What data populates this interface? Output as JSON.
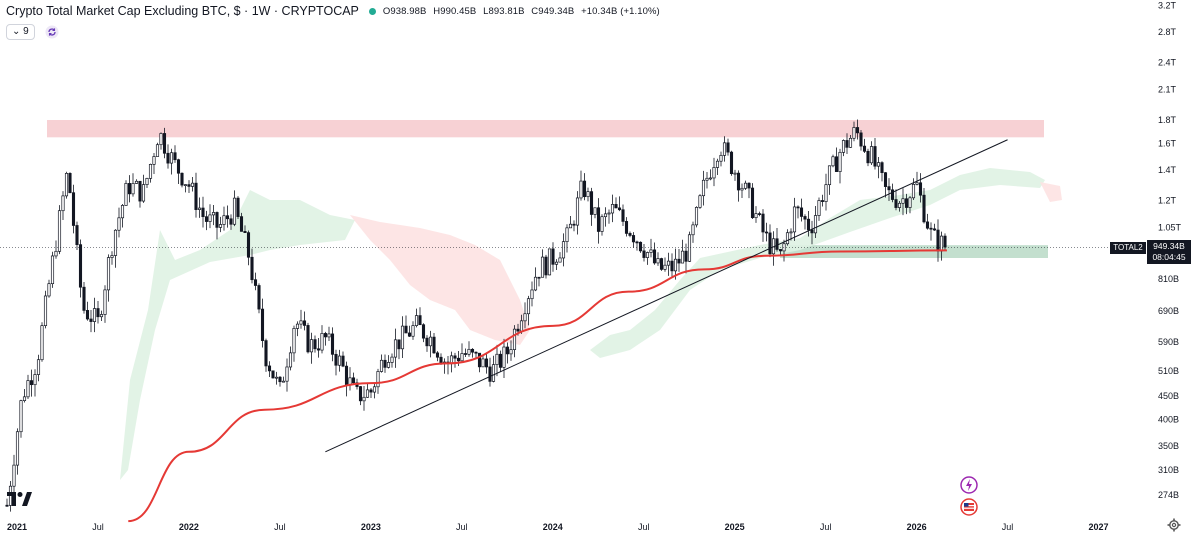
{
  "header": {
    "title": "Crypto Total Market Cap Excluding BTC, $ · 1W · CRYPTOCAP",
    "open": "O938.98B",
    "high": "H990.45B",
    "low": "L893.81B",
    "close": "C949.34B",
    "change": "+10.34B (+1.10%)",
    "indicator_count": "9"
  },
  "badges": {
    "symbol": "TOTAL2",
    "price": "949.34B",
    "countdown": "08:04:45"
  },
  "colors": {
    "up": "#131722",
    "down": "#131722",
    "ma": "#e53935",
    "resistance": "#f6c9cc",
    "support": "#b9d9c5",
    "cloud_bull": "#dff2e3",
    "cloud_bear": "#fde2e2",
    "trend": "#131722",
    "accent": "#22ab94"
  },
  "chart_data": {
    "type": "candlestick",
    "title": "Crypto Total Market Cap Excluding BTC, $ · 1W · CRYPTOCAP",
    "scale": "log",
    "ylim": [
      "240B",
      "3.2T"
    ],
    "xlim": [
      "2021-01",
      "2027-02"
    ],
    "y_ticks": [
      "3.2T",
      "2.8T",
      "2.4T",
      "2.1T",
      "1.8T",
      "1.6T",
      "1.4T",
      "1.2T",
      "1.05T",
      "949.34B",
      "810B",
      "690B",
      "590B",
      "510B",
      "450B",
      "400B",
      "350B",
      "310B",
      "274B"
    ],
    "x_ticks": [
      "2021",
      "Jul",
      "2022",
      "Jul",
      "2023",
      "Jul",
      "2024",
      "Jul",
      "2025",
      "Jul",
      "2026",
      "Jul",
      "2027"
    ],
    "price_path": [
      [
        "2021-01",
        260
      ],
      [
        "2021-02",
        450
      ],
      [
        "2021-03",
        540
      ],
      [
        "2021-04",
        880
      ],
      [
        "2021-05",
        1400
      ],
      [
        "2021-06",
        700
      ],
      [
        "2021-07",
        650
      ],
      [
        "2021-08",
        1000
      ],
      [
        "2021-09",
        1300
      ],
      [
        "2021-10",
        1250
      ],
      [
        "2021-11",
        1700
      ],
      [
        "2021-12",
        1450
      ],
      [
        "2022-01",
        1300
      ],
      [
        "2022-02",
        1100
      ],
      [
        "2022-03",
        1050
      ],
      [
        "2022-04",
        1150
      ],
      [
        "2022-05",
        900
      ],
      [
        "2022-06",
        560
      ],
      [
        "2022-07",
        460
      ],
      [
        "2022-08",
        660
      ],
      [
        "2022-09",
        580
      ],
      [
        "2022-10",
        600
      ],
      [
        "2022-11",
        530
      ],
      [
        "2022-12",
        450
      ],
      [
        "2023-01",
        460
      ],
      [
        "2023-02",
        560
      ],
      [
        "2023-03",
        600
      ],
      [
        "2023-04",
        640
      ],
      [
        "2023-05",
        600
      ],
      [
        "2023-06",
        530
      ],
      [
        "2023-07",
        560
      ],
      [
        "2023-08",
        540
      ],
      [
        "2023-09",
        510
      ],
      [
        "2023-10",
        560
      ],
      [
        "2023-11",
        700
      ],
      [
        "2023-12",
        850
      ],
      [
        "2024-01",
        900
      ],
      [
        "2024-02",
        1000
      ],
      [
        "2024-03",
        1300
      ],
      [
        "2024-04",
        1050
      ],
      [
        "2024-05",
        1150
      ],
      [
        "2024-06",
        1050
      ],
      [
        "2024-07",
        950
      ],
      [
        "2024-08",
        850
      ],
      [
        "2024-09",
        860
      ],
      [
        "2024-10",
        950
      ],
      [
        "2024-11",
        1300
      ],
      [
        "2024-12",
        1600
      ],
      [
        "2025-01",
        1400
      ],
      [
        "2025-02",
        1200
      ],
      [
        "2025-03",
        1000
      ],
      [
        "2025-04",
        900
      ],
      [
        "2025-05",
        1150
      ],
      [
        "2025-06",
        1050
      ],
      [
        "2025-07",
        1300
      ],
      [
        "2025-08",
        1550
      ],
      [
        "2025-09",
        1700
      ],
      [
        "2025-10",
        1500
      ],
      [
        "2025-11",
        1250
      ],
      [
        "2025-12",
        1200
      ],
      [
        "2026-01",
        1300
      ],
      [
        "2026-02",
        1000
      ],
      [
        "2026-03",
        949.34
      ]
    ],
    "moving_average": [
      [
        "2021-09",
        240
      ],
      [
        "2022-01",
        340
      ],
      [
        "2022-06",
        420
      ],
      [
        "2023-01",
        480
      ],
      [
        "2023-06",
        530
      ],
      [
        "2024-01",
        640
      ],
      [
        "2024-06",
        760
      ],
      [
        "2024-11",
        850
      ],
      [
        "2025-03",
        910
      ],
      [
        "2025-08",
        930
      ],
      [
        "2026-03",
        935
      ]
    ],
    "resistance_zone": [
      1650,
      1800
    ],
    "support_zone": [
      900,
      960
    ],
    "trendline": [
      [
        "2022-10",
        340
      ],
      [
        "2026-07",
        1630
      ]
    ],
    "last": {
      "open": "938.98B",
      "high": "990.45B",
      "low": "893.81B",
      "close": "949.34B",
      "change": "+10.34B (+1.10%)"
    }
  }
}
